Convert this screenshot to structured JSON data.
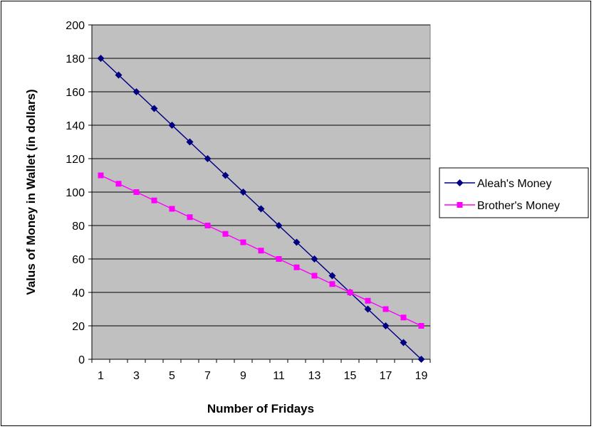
{
  "chart_data": {
    "type": "line",
    "title": "",
    "xlabel": "Number of Fridays",
    "ylabel": "Valus of Money in Wallet (in dollars)",
    "x": [
      1,
      2,
      3,
      4,
      5,
      6,
      7,
      8,
      9,
      10,
      11,
      12,
      13,
      14,
      15,
      16,
      17,
      18,
      19
    ],
    "x_tick_labels": [
      "1",
      "3",
      "5",
      "7",
      "9",
      "11",
      "13",
      "15",
      "17",
      "19"
    ],
    "y_tick_labels": [
      "0",
      "20",
      "40",
      "60",
      "80",
      "100",
      "120",
      "140",
      "160",
      "180",
      "200"
    ],
    "ylim": [
      0,
      200
    ],
    "grid": true,
    "legend_position": "right",
    "plot_background": "#c0c0c0",
    "series": [
      {
        "name": "Aleah's Money",
        "color": "#000080",
        "marker": "diamond",
        "values": [
          180,
          170,
          160,
          150,
          140,
          130,
          120,
          110,
          100,
          90,
          80,
          70,
          60,
          50,
          40,
          30,
          20,
          10,
          0
        ]
      },
      {
        "name": "Brother's Money",
        "color": "#ff00ff",
        "marker": "square",
        "values": [
          110,
          105,
          100,
          95,
          90,
          85,
          80,
          75,
          70,
          65,
          60,
          55,
          50,
          45,
          40,
          35,
          30,
          25,
          20
        ]
      }
    ]
  }
}
